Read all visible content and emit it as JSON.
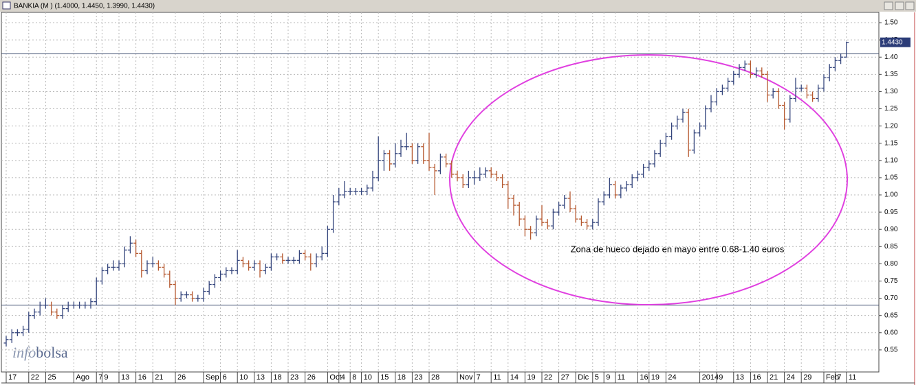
{
  "chart_data": {
    "type": "ohlc",
    "title": "BANKIA (M ) (1.4000, 1.4450, 1.3990, 1.4430)",
    "annotation": "Zona de hueco dejado en mayo entre 0.68-1.40 euros",
    "logo": [
      "info",
      "bolsa"
    ],
    "last_price_label": "1.4430",
    "up_color": "#34457c",
    "down_color": "#b5582f",
    "hlines": [
      1.41,
      0.68
    ],
    "grid": true,
    "ylim": [
      0.486,
      1.53
    ],
    "yticks": [
      0.55,
      {
        "value": 0.6,
        "label": "0.60"
      },
      0.65,
      {
        "value": 0.7,
        "label": "0.70"
      },
      0.75,
      {
        "value": 0.8,
        "label": "0.80"
      },
      0.85,
      {
        "value": 0.9,
        "label": "0.90"
      },
      0.95,
      {
        "value": 1.0,
        "label": "1.00"
      },
      1.05,
      {
        "value": 1.1,
        "label": "1.10"
      },
      1.15,
      {
        "value": 1.2,
        "label": "1.20"
      },
      1.25,
      {
        "value": 1.3,
        "label": "1.30"
      },
      1.35,
      {
        "value": 1.4,
        "label": "1.40"
      },
      1.45,
      {
        "value": 1.5,
        "label": "1.50"
      }
    ],
    "categories": [
      "17",
      null,
      null,
      null,
      "22",
      null,
      null,
      "25",
      null,
      null,
      null,
      null,
      "Ago",
      null,
      null,
      null,
      "7",
      "9",
      null,
      null,
      "13",
      null,
      null,
      "16",
      null,
      null,
      "21",
      null,
      null,
      null,
      "26",
      null,
      null,
      null,
      null,
      "Sep",
      null,
      null,
      "6",
      null,
      null,
      "10",
      null,
      null,
      "13",
      null,
      null,
      "18",
      null,
      null,
      "23",
      null,
      null,
      "26",
      null,
      null,
      null,
      "Oct",
      null,
      "4",
      null,
      "8",
      null,
      "10",
      null,
      null,
      "15",
      null,
      null,
      "18",
      null,
      null,
      "23",
      null,
      null,
      "28",
      null,
      null,
      null,
      null,
      "Nov",
      null,
      null,
      "7",
      null,
      null,
      "11",
      null,
      null,
      "14",
      null,
      null,
      "19",
      null,
      null,
      "22",
      null,
      null,
      "27",
      null,
      null,
      "Dic",
      null,
      null,
      "5",
      null,
      "9",
      null,
      "11",
      null,
      null,
      null,
      "16",
      null,
      "19",
      null,
      null,
      "24",
      null,
      null,
      null,
      null,
      null,
      "2014",
      null,
      null,
      "9",
      null,
      null,
      "13",
      null,
      null,
      "16",
      null,
      null,
      "21",
      null,
      null,
      "24",
      null,
      null,
      "29",
      null,
      null,
      null,
      "Feb",
      null,
      "7",
      null,
      "11"
    ],
    "open": [
      0.57,
      0.58,
      0.6,
      0.6,
      0.61,
      0.65,
      0.66,
      0.68,
      0.68,
      0.66,
      0.65,
      0.67,
      0.68,
      0.68,
      0.68,
      0.68,
      0.69,
      0.75,
      0.78,
      0.79,
      0.79,
      0.8,
      0.84,
      0.86,
      0.83,
      0.78,
      0.8,
      0.8,
      0.79,
      0.77,
      0.74,
      0.7,
      0.71,
      0.71,
      0.7,
      0.7,
      0.72,
      0.74,
      0.76,
      0.77,
      0.78,
      0.78,
      0.81,
      0.8,
      0.79,
      0.8,
      0.78,
      0.79,
      0.82,
      0.82,
      0.81,
      0.81,
      0.81,
      0.83,
      0.82,
      0.8,
      0.82,
      0.83,
      0.9,
      0.98,
      1.0,
      1.01,
      1.01,
      1.01,
      1.01,
      1.02,
      1.05,
      1.1,
      1.12,
      1.09,
      1.12,
      1.14,
      1.14,
      1.1,
      1.14,
      1.1,
      1.08,
      1.07,
      1.11,
      1.09,
      1.06,
      1.05,
      1.03,
      1.05,
      1.05,
      1.06,
      1.07,
      1.06,
      1.05,
      1.03,
      0.99,
      0.97,
      0.93,
      0.9,
      0.89,
      0.93,
      0.92,
      0.91,
      0.95,
      0.97,
      0.99,
      0.96,
      0.93,
      0.92,
      0.91,
      0.92,
      0.98,
      1.0,
      1.03,
      1.0,
      1.02,
      1.03,
      1.05,
      1.06,
      1.08,
      1.09,
      1.12,
      1.15,
      1.17,
      1.2,
      1.22,
      1.24,
      1.13,
      1.18,
      1.2,
      1.25,
      1.27,
      1.3,
      1.31,
      1.33,
      1.35,
      1.37,
      1.38,
      1.35,
      1.36,
      1.35,
      1.29,
      1.3,
      1.26,
      1.22,
      1.28,
      1.31,
      1.31,
      1.29,
      1.28,
      1.31,
      1.34,
      1.37,
      1.39,
      1.4
    ],
    "high": [
      0.59,
      0.61,
      0.61,
      0.62,
      0.66,
      0.67,
      0.69,
      0.7,
      0.69,
      0.67,
      0.68,
      0.69,
      0.69,
      0.69,
      0.69,
      0.7,
      0.76,
      0.79,
      0.8,
      0.81,
      0.81,
      0.85,
      0.88,
      0.87,
      0.84,
      0.81,
      0.82,
      0.81,
      0.8,
      0.78,
      0.75,
      0.72,
      0.72,
      0.72,
      0.71,
      0.73,
      0.75,
      0.77,
      0.78,
      0.79,
      0.79,
      0.84,
      0.82,
      0.81,
      0.81,
      0.81,
      0.8,
      0.83,
      0.83,
      0.83,
      0.82,
      0.82,
      0.84,
      0.84,
      0.83,
      0.83,
      0.85,
      0.91,
      1.0,
      1.02,
      1.04,
      1.02,
      1.02,
      1.02,
      1.03,
      1.07,
      1.17,
      1.13,
      1.13,
      1.15,
      1.16,
      1.18,
      1.15,
      1.15,
      1.15,
      1.18,
      1.09,
      1.12,
      1.12,
      1.1,
      1.07,
      1.06,
      1.07,
      1.07,
      1.08,
      1.08,
      1.08,
      1.07,
      1.06,
      1.04,
      1.0,
      0.98,
      0.94,
      0.91,
      0.94,
      0.97,
      0.93,
      0.96,
      0.98,
      1.0,
      1.01,
      0.97,
      0.94,
      0.93,
      0.93,
      0.99,
      1.01,
      1.05,
      1.04,
      1.03,
      1.04,
      1.06,
      1.07,
      1.09,
      1.1,
      1.13,
      1.16,
      1.18,
      1.21,
      1.23,
      1.25,
      1.25,
      1.19,
      1.21,
      1.26,
      1.29,
      1.31,
      1.32,
      1.34,
      1.36,
      1.38,
      1.39,
      1.39,
      1.37,
      1.37,
      1.36,
      1.31,
      1.31,
      1.27,
      1.29,
      1.34,
      1.32,
      1.32,
      1.3,
      1.32,
      1.35,
      1.38,
      1.4,
      1.41,
      1.445
    ],
    "low": [
      0.56,
      0.57,
      0.59,
      0.59,
      0.6,
      0.64,
      0.65,
      0.67,
      0.65,
      0.64,
      0.64,
      0.66,
      0.67,
      0.67,
      0.67,
      0.67,
      0.68,
      0.74,
      0.77,
      0.78,
      0.78,
      0.79,
      0.83,
      0.82,
      0.76,
      0.77,
      0.79,
      0.78,
      0.76,
      0.73,
      0.68,
      0.69,
      0.7,
      0.69,
      0.69,
      0.69,
      0.71,
      0.73,
      0.75,
      0.76,
      0.77,
      0.77,
      0.79,
      0.78,
      0.78,
      0.76,
      0.77,
      0.78,
      0.81,
      0.8,
      0.8,
      0.8,
      0.8,
      0.81,
      0.78,
      0.79,
      0.81,
      0.82,
      0.89,
      0.97,
      0.99,
      1.0,
      1.0,
      1.0,
      1.0,
      1.01,
      1.04,
      1.07,
      1.07,
      1.08,
      1.11,
      1.13,
      1.09,
      1.09,
      1.09,
      1.07,
      1.0,
      1.06,
      1.08,
      1.05,
      1.04,
      1.02,
      1.02,
      1.03,
      1.04,
      1.05,
      1.05,
      1.04,
      1.02,
      0.96,
      0.94,
      0.91,
      0.88,
      0.87,
      0.88,
      0.91,
      0.9,
      0.9,
      0.94,
      0.96,
      0.95,
      0.92,
      0.91,
      0.9,
      0.9,
      0.91,
      0.97,
      0.99,
      0.99,
      0.99,
      1.01,
      1.02,
      1.04,
      1.05,
      1.07,
      1.08,
      1.11,
      1.14,
      1.16,
      1.19,
      1.21,
      1.11,
      1.12,
      1.17,
      1.19,
      1.24,
      1.26,
      1.29,
      1.3,
      1.32,
      1.34,
      1.36,
      1.34,
      1.34,
      1.34,
      1.27,
      1.28,
      1.25,
      1.19,
      1.21,
      1.27,
      1.3,
      1.28,
      1.27,
      1.27,
      1.3,
      1.33,
      1.36,
      1.38,
      1.399
    ],
    "close": [
      0.58,
      0.6,
      0.6,
      0.61,
      0.65,
      0.66,
      0.68,
      0.68,
      0.66,
      0.65,
      0.67,
      0.68,
      0.68,
      0.68,
      0.68,
      0.69,
      0.75,
      0.78,
      0.79,
      0.79,
      0.8,
      0.84,
      0.86,
      0.83,
      0.78,
      0.8,
      0.8,
      0.79,
      0.77,
      0.74,
      0.7,
      0.71,
      0.71,
      0.7,
      0.7,
      0.72,
      0.74,
      0.76,
      0.77,
      0.78,
      0.78,
      0.81,
      0.8,
      0.79,
      0.8,
      0.78,
      0.79,
      0.82,
      0.82,
      0.81,
      0.81,
      0.81,
      0.83,
      0.82,
      0.8,
      0.82,
      0.83,
      0.9,
      0.98,
      1.0,
      1.01,
      1.01,
      1.01,
      1.01,
      1.02,
      1.05,
      1.1,
      1.12,
      1.09,
      1.12,
      1.14,
      1.14,
      1.1,
      1.14,
      1.1,
      1.08,
      1.07,
      1.11,
      1.09,
      1.06,
      1.05,
      1.03,
      1.05,
      1.05,
      1.06,
      1.07,
      1.06,
      1.05,
      1.03,
      0.99,
      0.97,
      0.93,
      0.9,
      0.89,
      0.93,
      0.92,
      0.91,
      0.95,
      0.97,
      0.99,
      0.96,
      0.93,
      0.92,
      0.91,
      0.92,
      0.98,
      1.0,
      1.03,
      1.0,
      1.02,
      1.03,
      1.05,
      1.06,
      1.08,
      1.09,
      1.12,
      1.15,
      1.17,
      1.2,
      1.22,
      1.24,
      1.13,
      1.18,
      1.2,
      1.25,
      1.27,
      1.3,
      1.31,
      1.33,
      1.35,
      1.37,
      1.38,
      1.35,
      1.36,
      1.35,
      1.29,
      1.3,
      1.26,
      1.22,
      1.28,
      1.31,
      1.31,
      1.29,
      1.28,
      1.31,
      1.34,
      1.37,
      1.39,
      1.4,
      1.443
    ]
  }
}
